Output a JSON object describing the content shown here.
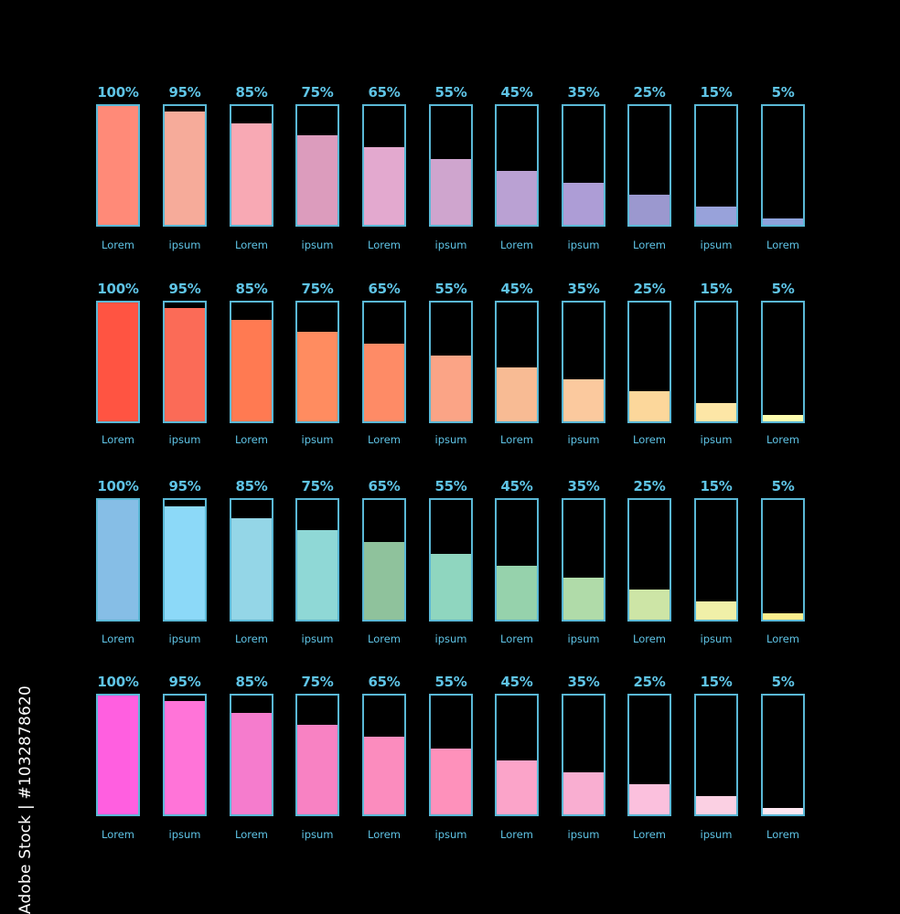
{
  "chart_data": [
    {
      "type": "bar",
      "categories": [
        "Lorem",
        "ipsum",
        "Lorem",
        "ipsum",
        "Lorem",
        "ipsum",
        "Lorem",
        "ipsum",
        "Lorem",
        "ipsum",
        "Lorem"
      ],
      "values": [
        100,
        95,
        85,
        75,
        65,
        55,
        45,
        35,
        25,
        15,
        5
      ],
      "value_labels": [
        "100%",
        "95%",
        "85%",
        "75%",
        "65%",
        "55%",
        "45%",
        "35%",
        "25%",
        "15%",
        "5%"
      ],
      "ylim": [
        0,
        100
      ],
      "colors": [
        "#ff8a78",
        "#f6ab9a",
        "#f8a9b4",
        "#dc9cbd",
        "#e3a9cf",
        "#cfa5ce",
        "#baa1d3",
        "#ad9dd6",
        "#9b98cf",
        "#98a2da",
        "#8ea3dc"
      ]
    },
    {
      "type": "bar",
      "categories": [
        "Lorem",
        "ipsum",
        "Lorem",
        "ipsum",
        "Lorem",
        "ipsum",
        "Lorem",
        "ipsum",
        "Lorem",
        "ipsum",
        "Lorem"
      ],
      "values": [
        100,
        95,
        85,
        75,
        65,
        55,
        45,
        35,
        25,
        15,
        5
      ],
      "value_labels": [
        "100%",
        "95%",
        "85%",
        "75%",
        "65%",
        "55%",
        "45%",
        "35%",
        "25%",
        "15%",
        "5%"
      ],
      "ylim": [
        0,
        100
      ],
      "colors": [
        "#ff5442",
        "#fb6b57",
        "#ff7a52",
        "#ff8c60",
        "#fe8b66",
        "#fba486",
        "#f8bb94",
        "#fbc99e",
        "#fcd79b",
        "#fde6a6",
        "#fdfcae"
      ]
    },
    {
      "type": "bar",
      "categories": [
        "Lorem",
        "ipsum",
        "Lorem",
        "ipsum",
        "Lorem",
        "ipsum",
        "Lorem",
        "ipsum",
        "Lorem",
        "ipsum",
        "Lorem"
      ],
      "values": [
        100,
        95,
        85,
        75,
        65,
        55,
        45,
        35,
        25,
        15,
        5
      ],
      "value_labels": [
        "100%",
        "95%",
        "85%",
        "75%",
        "65%",
        "55%",
        "45%",
        "35%",
        "25%",
        "15%",
        "5%"
      ],
      "ylim": [
        0,
        100
      ],
      "colors": [
        "#86bee6",
        "#8cd9f8",
        "#94d6e7",
        "#8fd8d6",
        "#8fc29c",
        "#8fd6bf",
        "#96d2ac",
        "#b0dba9",
        "#cde5a6",
        "#f0f0a8",
        "#fbee8d"
      ]
    },
    {
      "type": "bar",
      "categories": [
        "Lorem",
        "ipsum",
        "Lorem",
        "ipsum",
        "Lorem",
        "ipsum",
        "Lorem",
        "ipsum",
        "Lorem",
        "ipsum",
        "Lorem"
      ],
      "values": [
        100,
        95,
        85,
        75,
        65,
        55,
        45,
        35,
        25,
        15,
        5
      ],
      "value_labels": [
        "100%",
        "95%",
        "85%",
        "75%",
        "65%",
        "55%",
        "45%",
        "35%",
        "25%",
        "15%",
        "5%"
      ],
      "ylim": [
        0,
        100
      ],
      "colors": [
        "#ff5fe0",
        "#ff74d8",
        "#f57ccd",
        "#f882c3",
        "#fb8cbe",
        "#fe91bb",
        "#fba4c9",
        "#f9aed1",
        "#fbc0dd",
        "#fbd0e3",
        "#fde7f1"
      ]
    }
  ],
  "style": {
    "value_label_color": "#5fc4e6",
    "category_label_color": "#5fc4e6",
    "box_border_color": "#5ab8d6",
    "background": "#000000"
  },
  "watermark": {
    "text": "Adobe Stock | #1032878620"
  }
}
